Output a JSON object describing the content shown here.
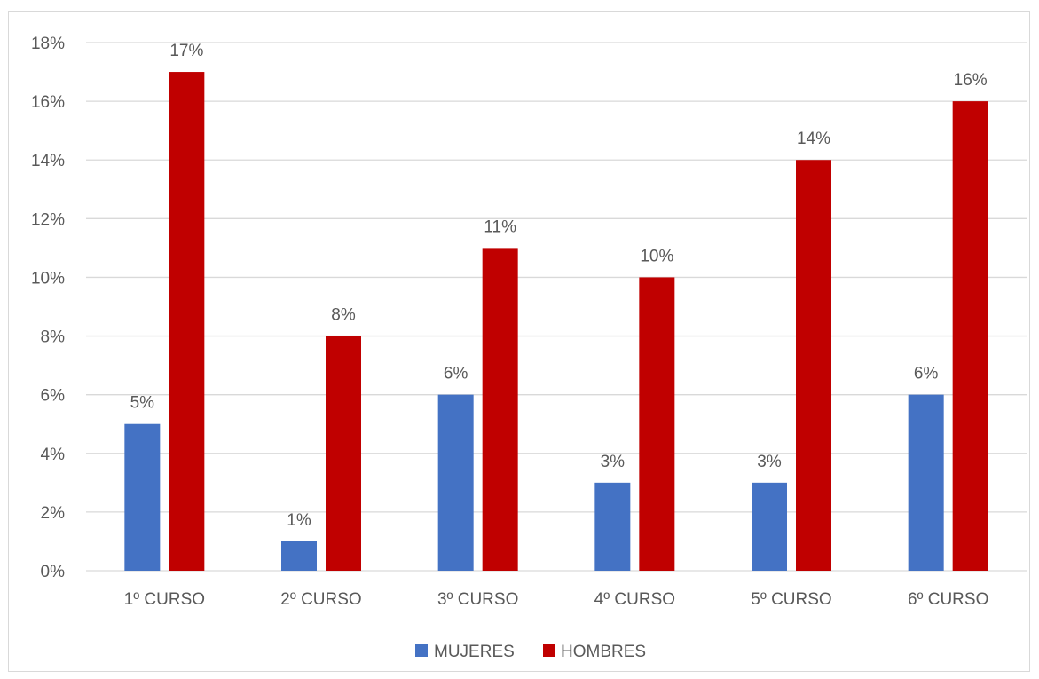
{
  "chart_data": {
    "type": "bar",
    "categories": [
      "1º CURSO",
      "2º CURSO",
      "3º CURSO",
      "4º CURSO",
      "5º CURSO",
      "6º CURSO"
    ],
    "series": [
      {
        "name": "MUJERES",
        "values": [
          5,
          1,
          6,
          3,
          3,
          6
        ],
        "labels": [
          "5%",
          "1%",
          "6%",
          "3%",
          "3%",
          "6%"
        ],
        "color": "#4472C4"
      },
      {
        "name": "HOMBRES",
        "values": [
          17,
          8,
          11,
          10,
          14,
          16
        ],
        "labels": [
          "17%",
          "8%",
          "11%",
          "10%",
          "14%",
          "16%"
        ],
        "color": "#C00000"
      }
    ],
    "ylim": [
      0,
      18
    ],
    "yticks": [
      0,
      2,
      4,
      6,
      8,
      10,
      12,
      14,
      16,
      18
    ],
    "ytick_labels": [
      "0%",
      "2%",
      "4%",
      "6%",
      "8%",
      "10%",
      "12%",
      "14%",
      "16%",
      "18%"
    ],
    "grid": true,
    "legend_position": "bottom",
    "title": "",
    "xlabel": "",
    "ylabel": ""
  }
}
